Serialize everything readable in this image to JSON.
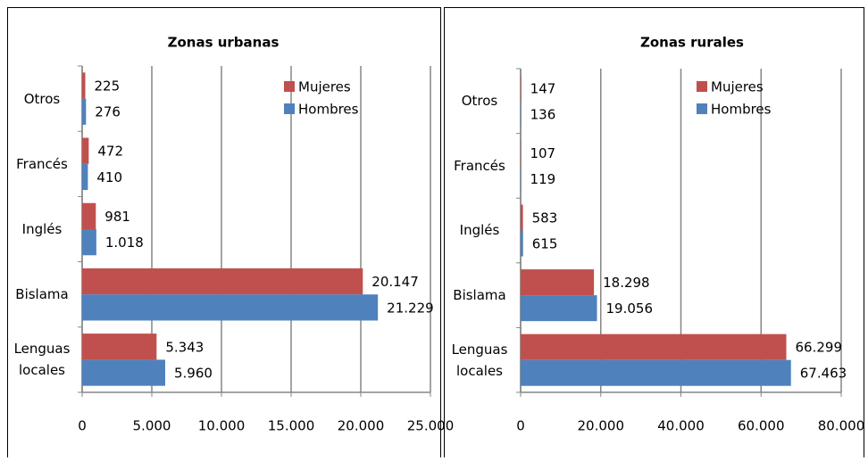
{
  "chart_data": [
    {
      "type": "bar",
      "orientation": "horizontal",
      "title": "Zonas urbanas",
      "categories": [
        "Lenguas locales",
        "Bislama",
        "Inglés",
        "Francés",
        "Otros"
      ],
      "series": [
        {
          "name": "Mujeres",
          "color": "#c0504d",
          "values": [
            5343,
            20147,
            981,
            472,
            225
          ],
          "value_labels": [
            "5.343",
            "20.147",
            "981",
            "472",
            "225"
          ]
        },
        {
          "name": "Hombres",
          "color": "#4f81bd",
          "values": [
            5960,
            21229,
            1018,
            410,
            276
          ],
          "value_labels": [
            "5.960",
            "21.229",
            "1.018",
            "410",
            "276"
          ]
        }
      ],
      "xlim": [
        0,
        25000
      ],
      "xticks": [
        0,
        {
          "value": 5000,
          "label": "5.000"
        },
        {
          "value": 10000,
          "label": "10.000"
        },
        {
          "value": 15000,
          "label": "15.000"
        },
        {
          "value": 20000,
          "label": "20.000"
        },
        {
          "value": 25000,
          "label": "25.000"
        }
      ],
      "grid": true,
      "legend": "top-right"
    },
    {
      "type": "bar",
      "orientation": "horizontal",
      "title": "Zonas rurales",
      "categories": [
        "Lenguas locales",
        "Bislama",
        "Inglés",
        "Francés",
        "Otros"
      ],
      "series": [
        {
          "name": "Mujeres",
          "color": "#c0504d",
          "values": [
            66299,
            18298,
            583,
            107,
            147
          ],
          "value_labels": [
            "66.299",
            "18.298",
            "583",
            "107",
            "147"
          ]
        },
        {
          "name": "Hombres",
          "color": "#4f81bd",
          "values": [
            67463,
            19056,
            615,
            119,
            136
          ],
          "value_labels": [
            "67.463",
            "19.056",
            "615",
            "119",
            "136"
          ]
        }
      ],
      "xlim": [
        0,
        80000
      ],
      "xticks": [
        0,
        {
          "value": 20000,
          "label": "20.000"
        },
        {
          "value": 40000,
          "label": "40.000"
        },
        {
          "value": 60000,
          "label": "60.000"
        },
        {
          "value": 80000,
          "label": "80.000"
        }
      ],
      "grid": true,
      "legend": "top-right"
    }
  ]
}
